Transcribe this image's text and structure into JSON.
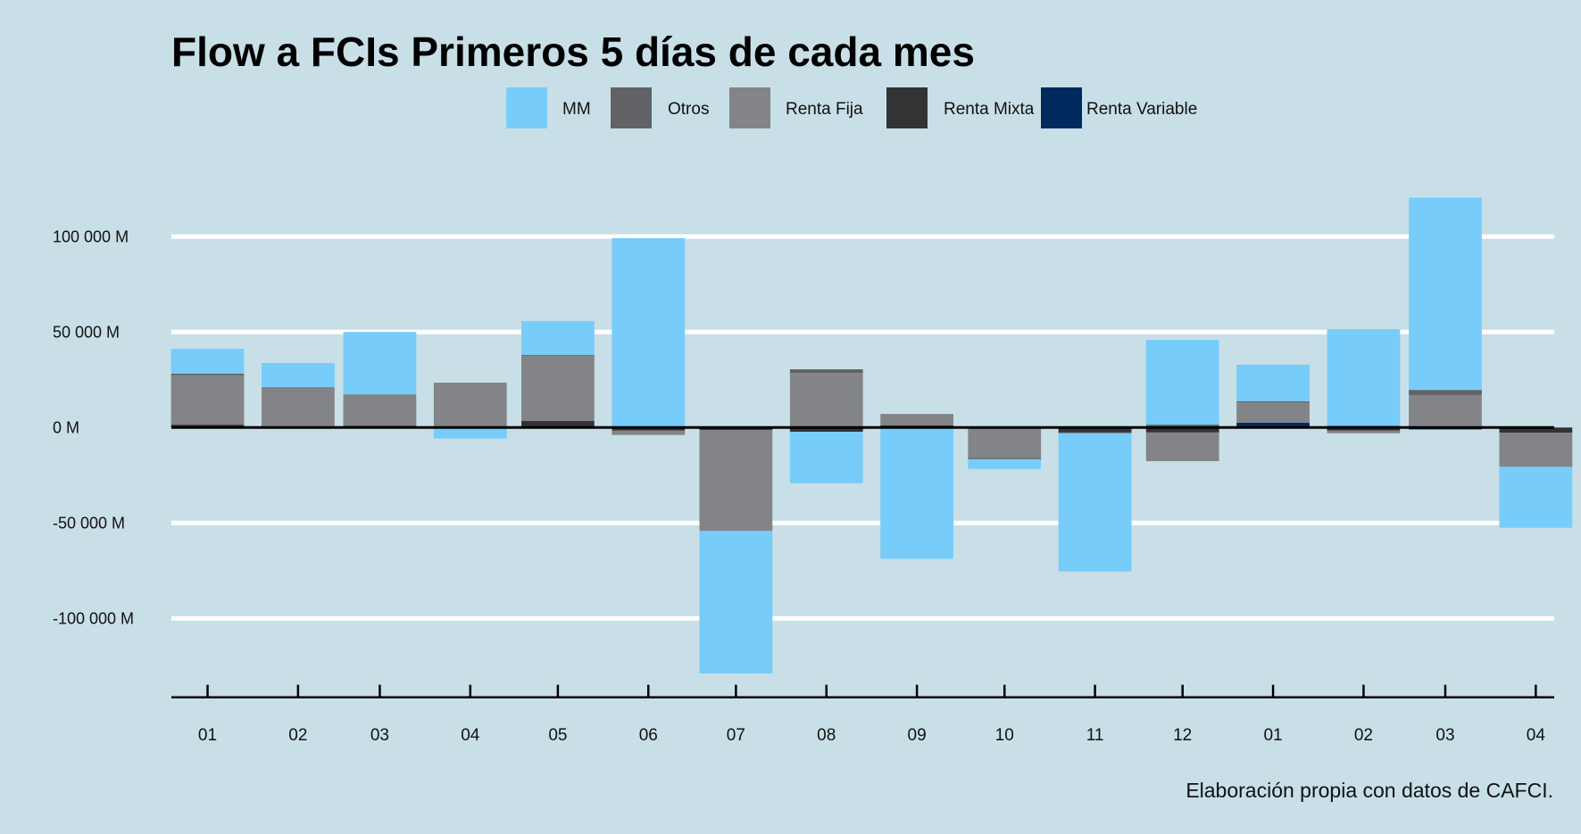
{
  "chart_data": {
    "type": "bar",
    "stacked": true,
    "title": "Flow a FCIs Primeros 5 días de cada mes",
    "caption": "Elaboración propia con datos de CAFCI.",
    "xlabel": "",
    "ylabel": "",
    "ylim": [
      -140000,
      130000
    ],
    "y_ticks": [
      -100000,
      -50000,
      0,
      50000,
      100000
    ],
    "y_tick_labels": [
      "-100 000 M",
      "-50 000 M",
      "0 M",
      "50 000 M",
      "100 000 M"
    ],
    "grid": true,
    "legend_position": "top",
    "categories": [
      "01",
      "02",
      "03",
      "04",
      "05",
      "06",
      "07",
      "08",
      "09",
      "10",
      "11",
      "12",
      "01",
      "02",
      "03",
      "04"
    ],
    "month_lengths_days": [
      31,
      28,
      31,
      30,
      31,
      30,
      31,
      31,
      30,
      31,
      30,
      31,
      31,
      28,
      31,
      30
    ],
    "series": [
      {
        "name": "MM",
        "color": "#77CCFA",
        "values": [
          13000,
          12600,
          32700,
          -5800,
          17700,
          98700,
          -74600,
          -27000,
          -68800,
          -5100,
          -72400,
          44400,
          19200,
          50500,
          100700,
          -31900
        ]
      },
      {
        "name": "Otros",
        "color": "#626366",
        "values": [
          800,
          0,
          0,
          0,
          500,
          500,
          0,
          1900,
          0,
          -800,
          -400,
          1500,
          500,
          1000,
          2700,
          0
        ]
      },
      {
        "name": "Renta Fija",
        "color": "#838488",
        "values": [
          25900,
          21200,
          16400,
          23500,
          34200,
          -2400,
          -52900,
          28600,
          5900,
          -15800,
          0,
          -15000,
          10700,
          -1500,
          17000,
          -17900
        ]
      },
      {
        "name": "Renta Mixta",
        "color": "#323334",
        "values": [
          1500,
          0,
          1000,
          0,
          3400,
          -1500,
          -1300,
          -2200,
          1200,
          0,
          -2600,
          -2600,
          0,
          -1500,
          0,
          -2700
        ]
      },
      {
        "name": "Renta Variable",
        "color": "#002A5E",
        "values": [
          0,
          0,
          0,
          0,
          0,
          0,
          0,
          0,
          0,
          0,
          0,
          0,
          2500,
          0,
          -1000,
          0
        ]
      }
    ]
  }
}
